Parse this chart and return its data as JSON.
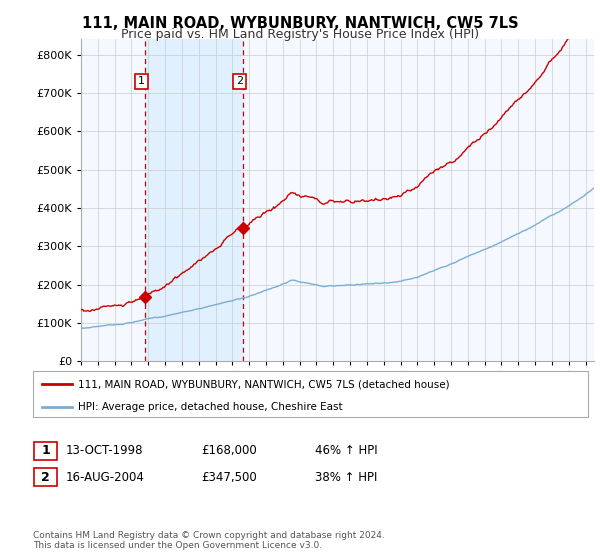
{
  "title": "111, MAIN ROAD, WYBUNBURY, NANTWICH, CW5 7LS",
  "subtitle": "Price paid vs. HM Land Registry's House Price Index (HPI)",
  "sale1_year": 1998.79,
  "sale1_price": 168000,
  "sale2_year": 2004.63,
  "sale2_price": 347500,
  "legend_label1": "111, MAIN ROAD, WYBUNBURY, NANTWICH, CW5 7LS (detached house)",
  "legend_label2": "HPI: Average price, detached house, Cheshire East",
  "footer": "Contains HM Land Registry data © Crown copyright and database right 2024.\nThis data is licensed under the Open Government Licence v3.0.",
  "price_color": "#cc0000",
  "hpi_color": "#7aaed6",
  "shade_color": "#ddeeff",
  "vline_color": "#cc0000",
  "background_color": "#ffffff",
  "plot_bg_color": "#f5f8ff",
  "grid_color": "#cccccc",
  "ylim_min": 0,
  "ylim_max": 840000,
  "table_row1": [
    "1",
    "13-OCT-1998",
    "£168,000",
    "46% ↑ HPI"
  ],
  "table_row2": [
    "2",
    "16-AUG-2004",
    "£347,500",
    "38% ↑ HPI"
  ]
}
